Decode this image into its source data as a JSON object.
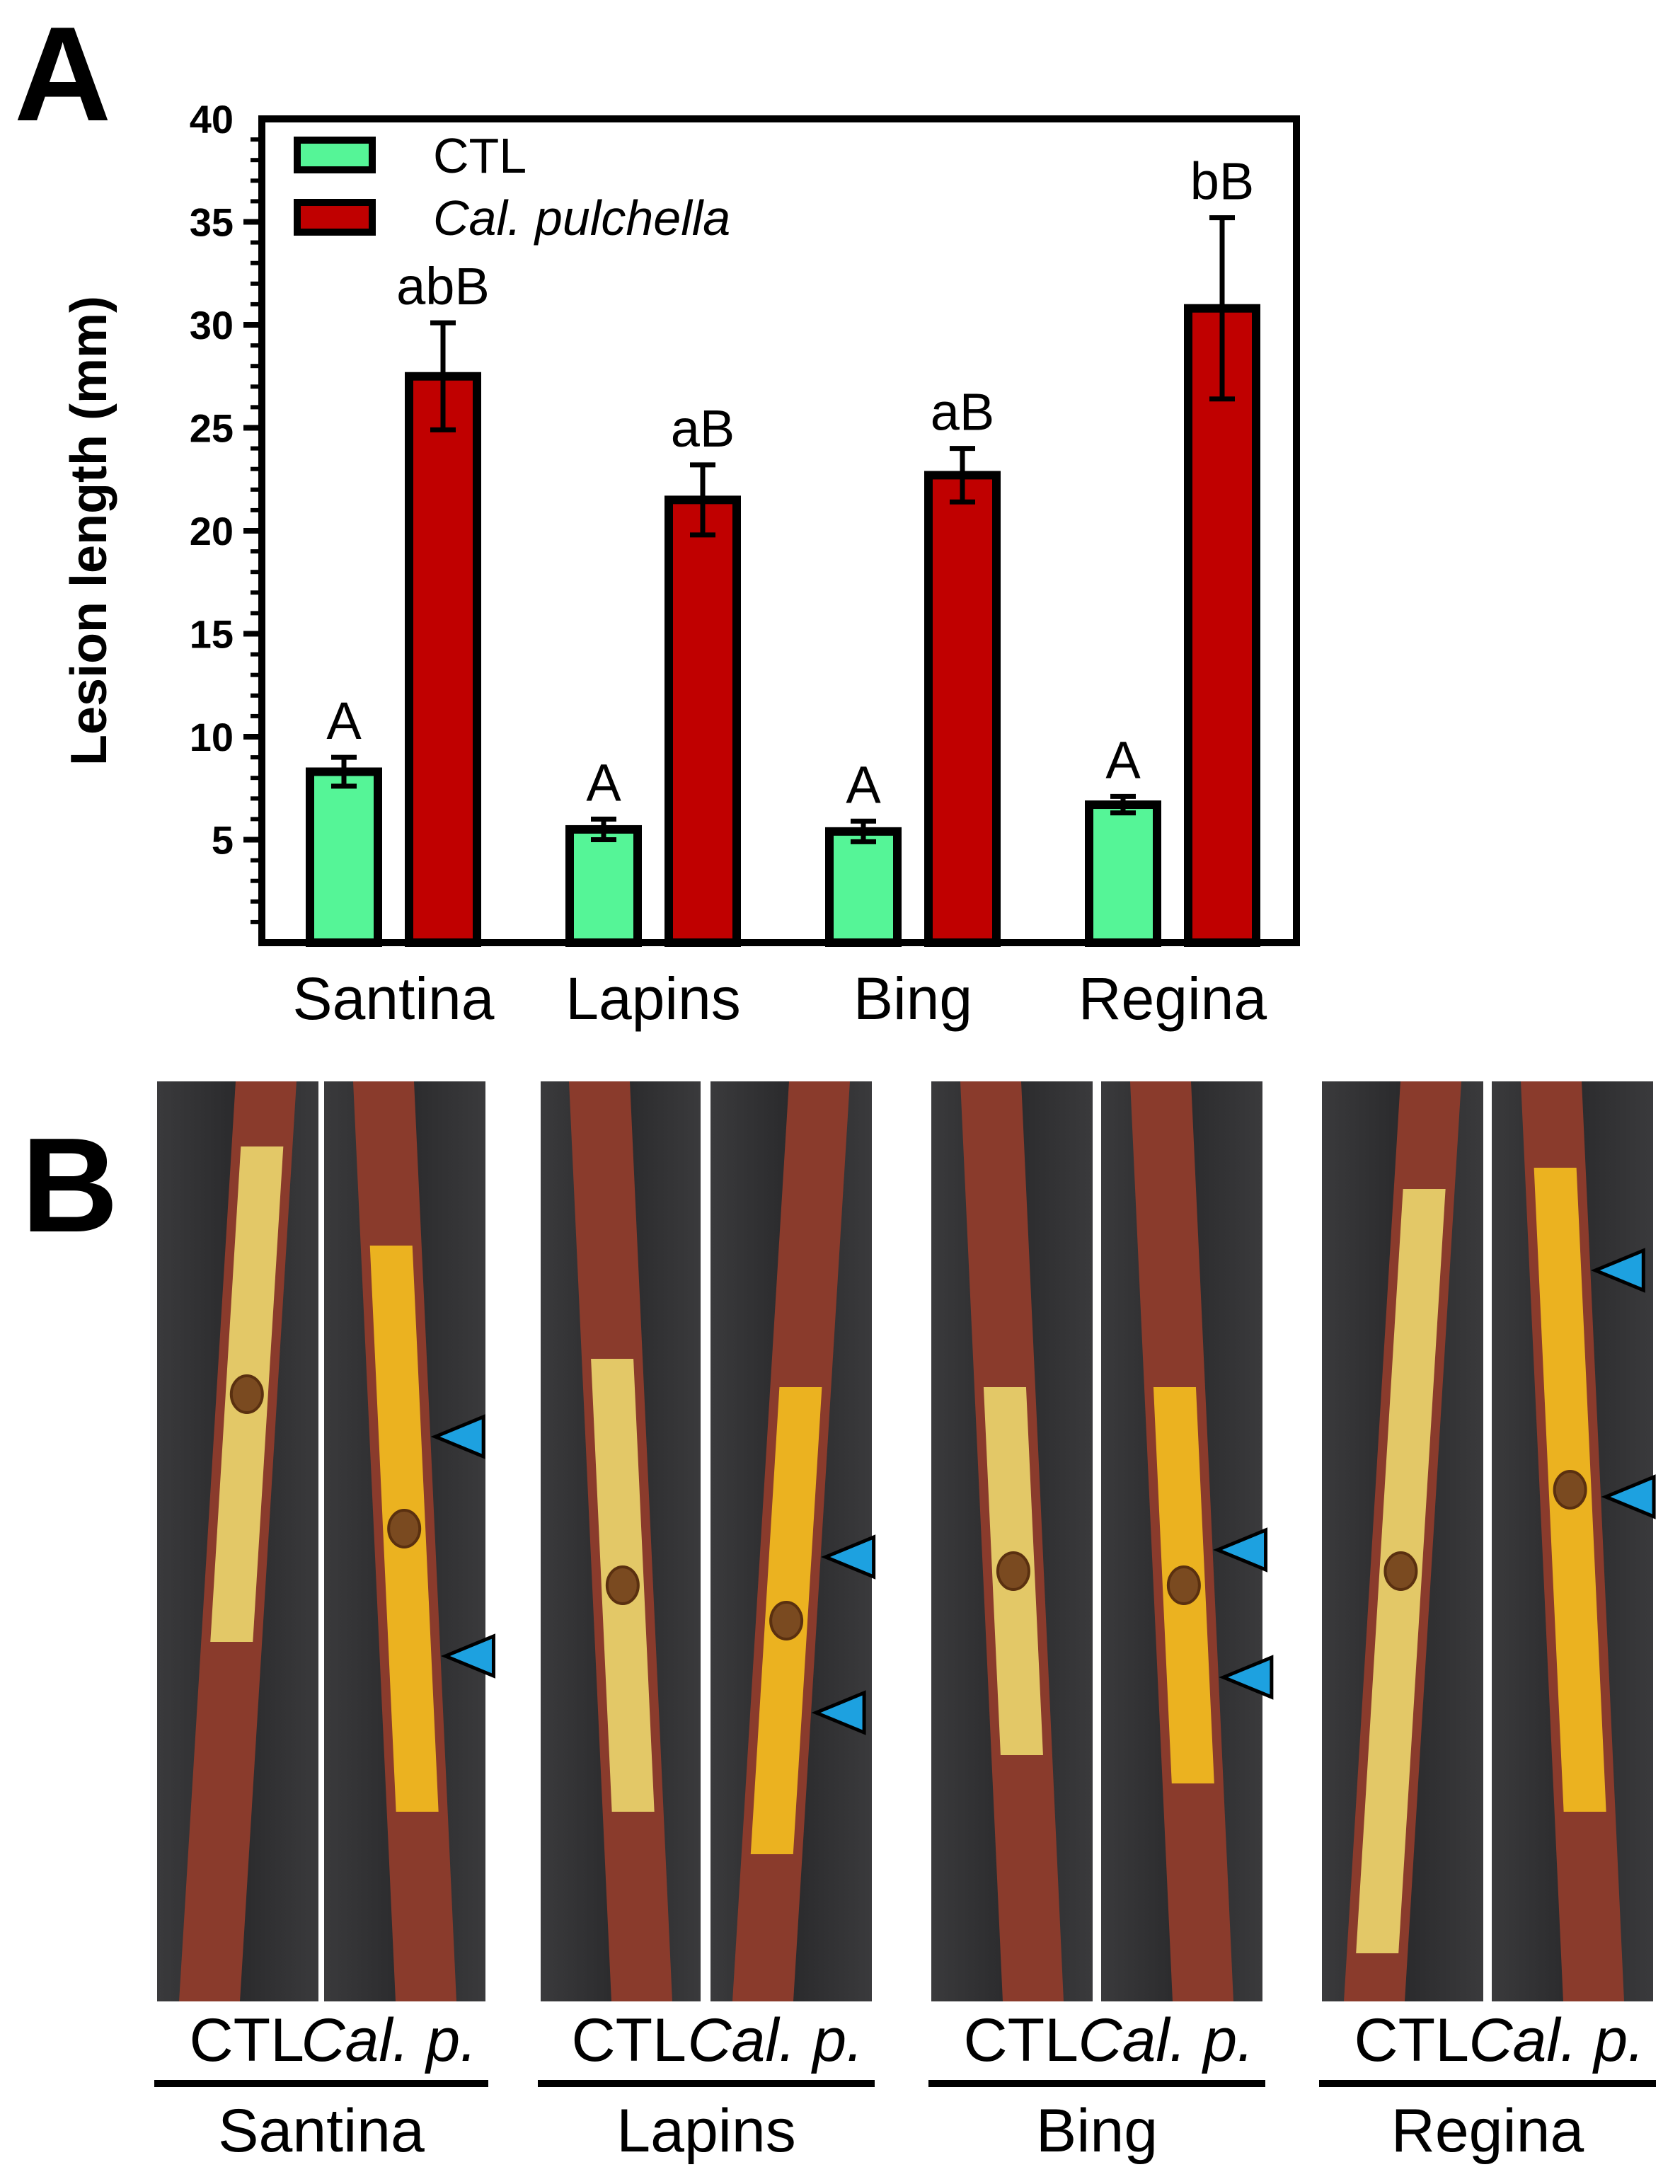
{
  "figure": {
    "panel_a_letter": "A",
    "panel_b_letter": "B"
  },
  "chart_data": {
    "type": "bar",
    "title": "",
    "xlabel": "",
    "ylabel": "Lesion length (mm)",
    "ylim": [
      0,
      40
    ],
    "yticks": [
      5,
      10,
      15,
      20,
      25,
      30,
      35,
      40
    ],
    "grid": false,
    "legend_position": "top-left",
    "categories": [
      "Santina",
      "Lapins",
      "Bing",
      "Regina"
    ],
    "series": [
      {
        "name": "CTL",
        "color": "#55f597",
        "values": [
          8.3,
          5.5,
          5.4,
          6.7
        ],
        "errors": [
          0.7,
          0.5,
          0.5,
          0.4
        ],
        "sig_labels": [
          "A",
          "A",
          "A",
          "A"
        ]
      },
      {
        "name": "Cal. pulchella",
        "color": "#c00000",
        "values": [
          27.5,
          21.5,
          22.7,
          30.8
        ],
        "errors": [
          2.6,
          1.7,
          1.3,
          4.4
        ],
        "sig_labels": [
          "abB",
          "aB",
          "aB",
          "bB"
        ]
      }
    ]
  },
  "panel_b": {
    "groups": [
      {
        "cultivar": "Santina",
        "ctl_label": "CTL",
        "trt_label": "Cal. p."
      },
      {
        "cultivar": "Lapins",
        "ctl_label": "CTL",
        "trt_label": "Cal. p."
      },
      {
        "cultivar": "Bing",
        "ctl_label": "CTL",
        "trt_label": "Cal. p."
      },
      {
        "cultivar": "Regina",
        "ctl_label": "CTL",
        "trt_label": "Cal. p."
      }
    ],
    "colors": {
      "background": "#2c2c2e",
      "bark": "#8a3b2c",
      "wood": "#e8d06a",
      "lesion": "#f0b820",
      "arrow": "#1da1e0"
    },
    "arrow_icon": "blue-triangle-arrow-icon"
  }
}
